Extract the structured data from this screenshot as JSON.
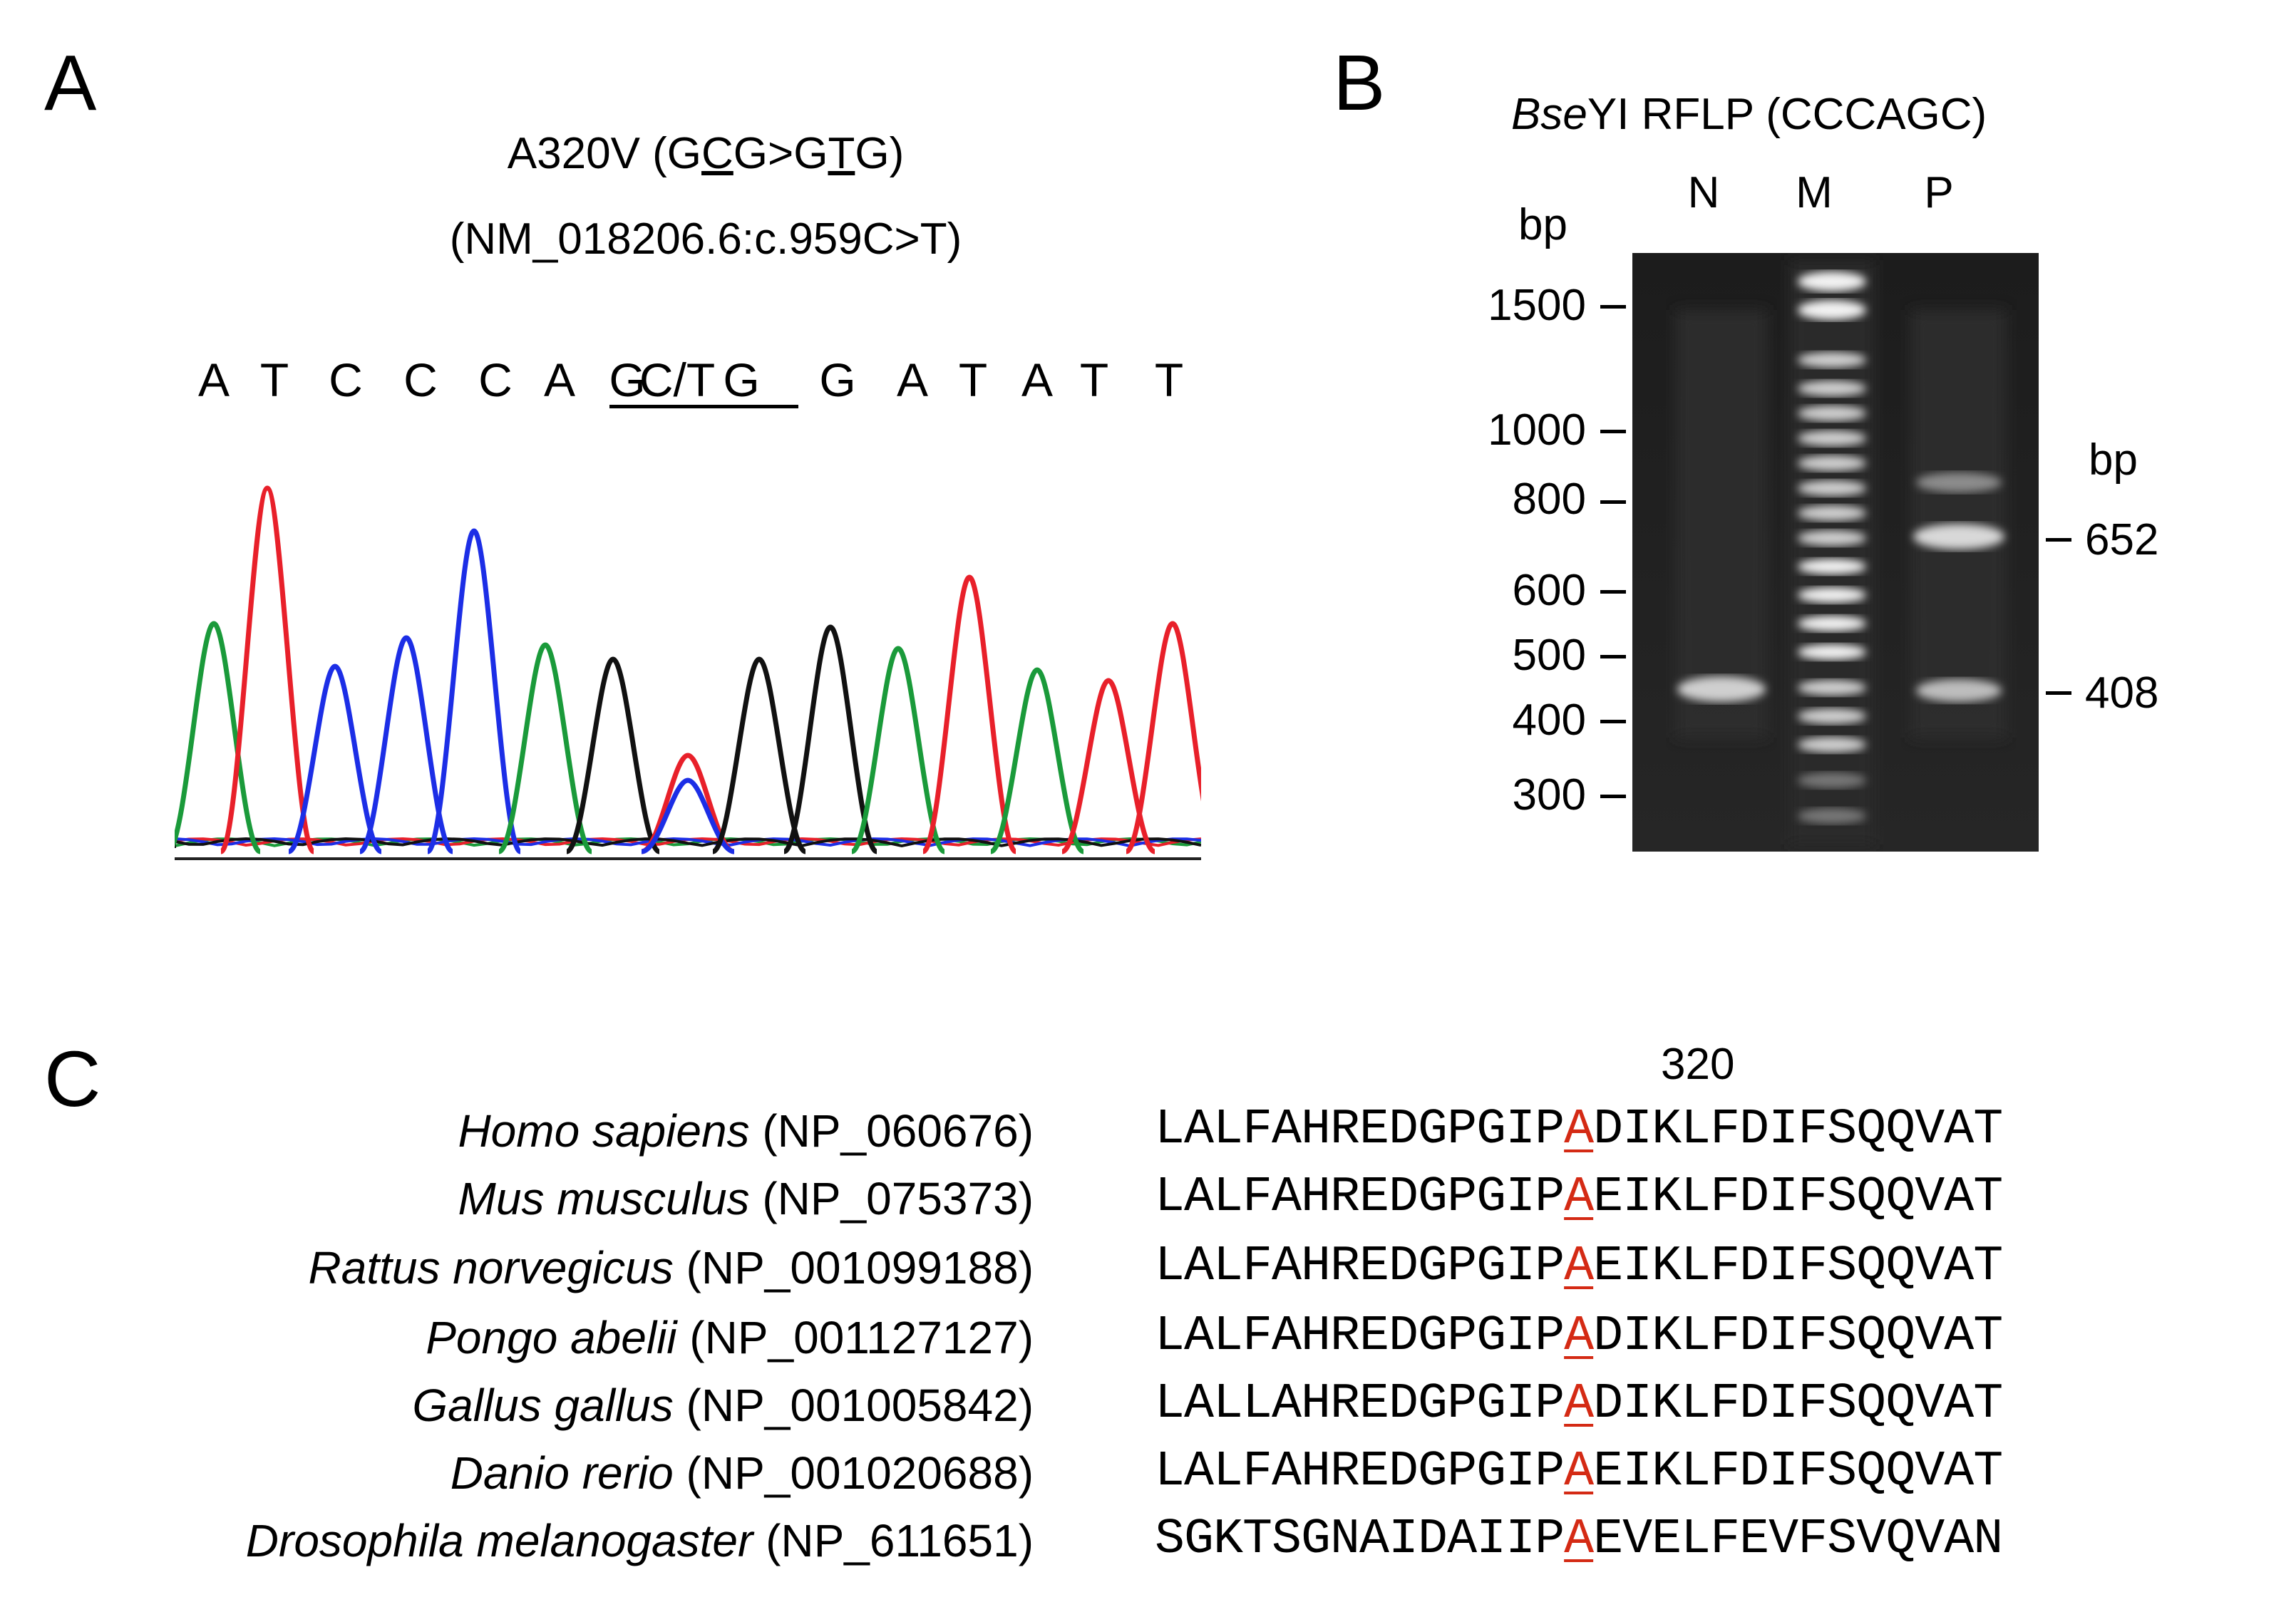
{
  "panelA": {
    "label": "A",
    "title_line1": "A320V (GCG>GTG)",
    "title_line1_pre": "A320V (G",
    "title_line1_u1": "C",
    "title_line1_mid": "G>G",
    "title_line1_u2": "T",
    "title_line1_post": "G)",
    "title_line2": "(NM_018206.6:c.959C>T)",
    "sequence": [
      "A",
      "T",
      "C",
      "C",
      "C",
      "A",
      "G",
      "C/T",
      "G",
      "G",
      "A",
      "T",
      "A",
      "T",
      "T"
    ],
    "trace_colors": {
      "A": "#1a9a3a",
      "T": "#e8202a",
      "C": "#1c2ee6",
      "G": "#111111"
    }
  },
  "panelB": {
    "label": "B",
    "title_italic": "Bse",
    "title_rest": "YI RFLP (CCCAGC)",
    "bp_left": "bp",
    "bp_right": "bp",
    "lanes": [
      "N",
      "M",
      "P"
    ],
    "marker_sizes": [
      "1500",
      "1000",
      "800",
      "600",
      "500",
      "400",
      "300"
    ],
    "fragment_sizes": [
      "652",
      "408"
    ]
  },
  "panelC": {
    "label": "C",
    "position_label": "320",
    "highlight_color": "#d42a14",
    "rows": [
      {
        "species": "Homo sapiens",
        "accession": "(NP_060676)",
        "pre": "LALFAHREDGPGIP",
        "mark": "A",
        "post": "DIKLFDIFSQQVAT"
      },
      {
        "species": "Mus musculus",
        "accession": "(NP_075373)",
        "pre": "LALFAHREDGPGIP",
        "mark": "A",
        "post": "EIKLFDIFSQQVAT"
      },
      {
        "species": "Rattus norvegicus",
        "accession": "(NP_001099188)",
        "pre": "LALFAHREDGPGIP",
        "mark": "A",
        "post": "EIKLFDIFSQQVAT"
      },
      {
        "species": "Pongo abelii",
        "accession": "(NP_001127127)",
        "pre": "LALFAHREDGPGIP",
        "mark": "A",
        "post": "DIKLFDIFSQQVAT"
      },
      {
        "species": "Gallus gallus",
        "accession": "(NP_001005842)",
        "pre": "LALLAHREDGPGIP",
        "mark": "A",
        "post": "DIKLFDIFSQQVAT"
      },
      {
        "species": "Danio rerio",
        "accession": "(NP_001020688)",
        "pre": "LALFAHREDGPGIP",
        "mark": "A",
        "post": "EIKLFDIFSQQVAT"
      },
      {
        "species": "Drosophila melanogaster",
        "accession": "(NP_611651)",
        "pre": "SGKTSGNAIDAIIP",
        "mark": "A",
        "post": "EVELFEVFSVQVAN"
      }
    ]
  }
}
